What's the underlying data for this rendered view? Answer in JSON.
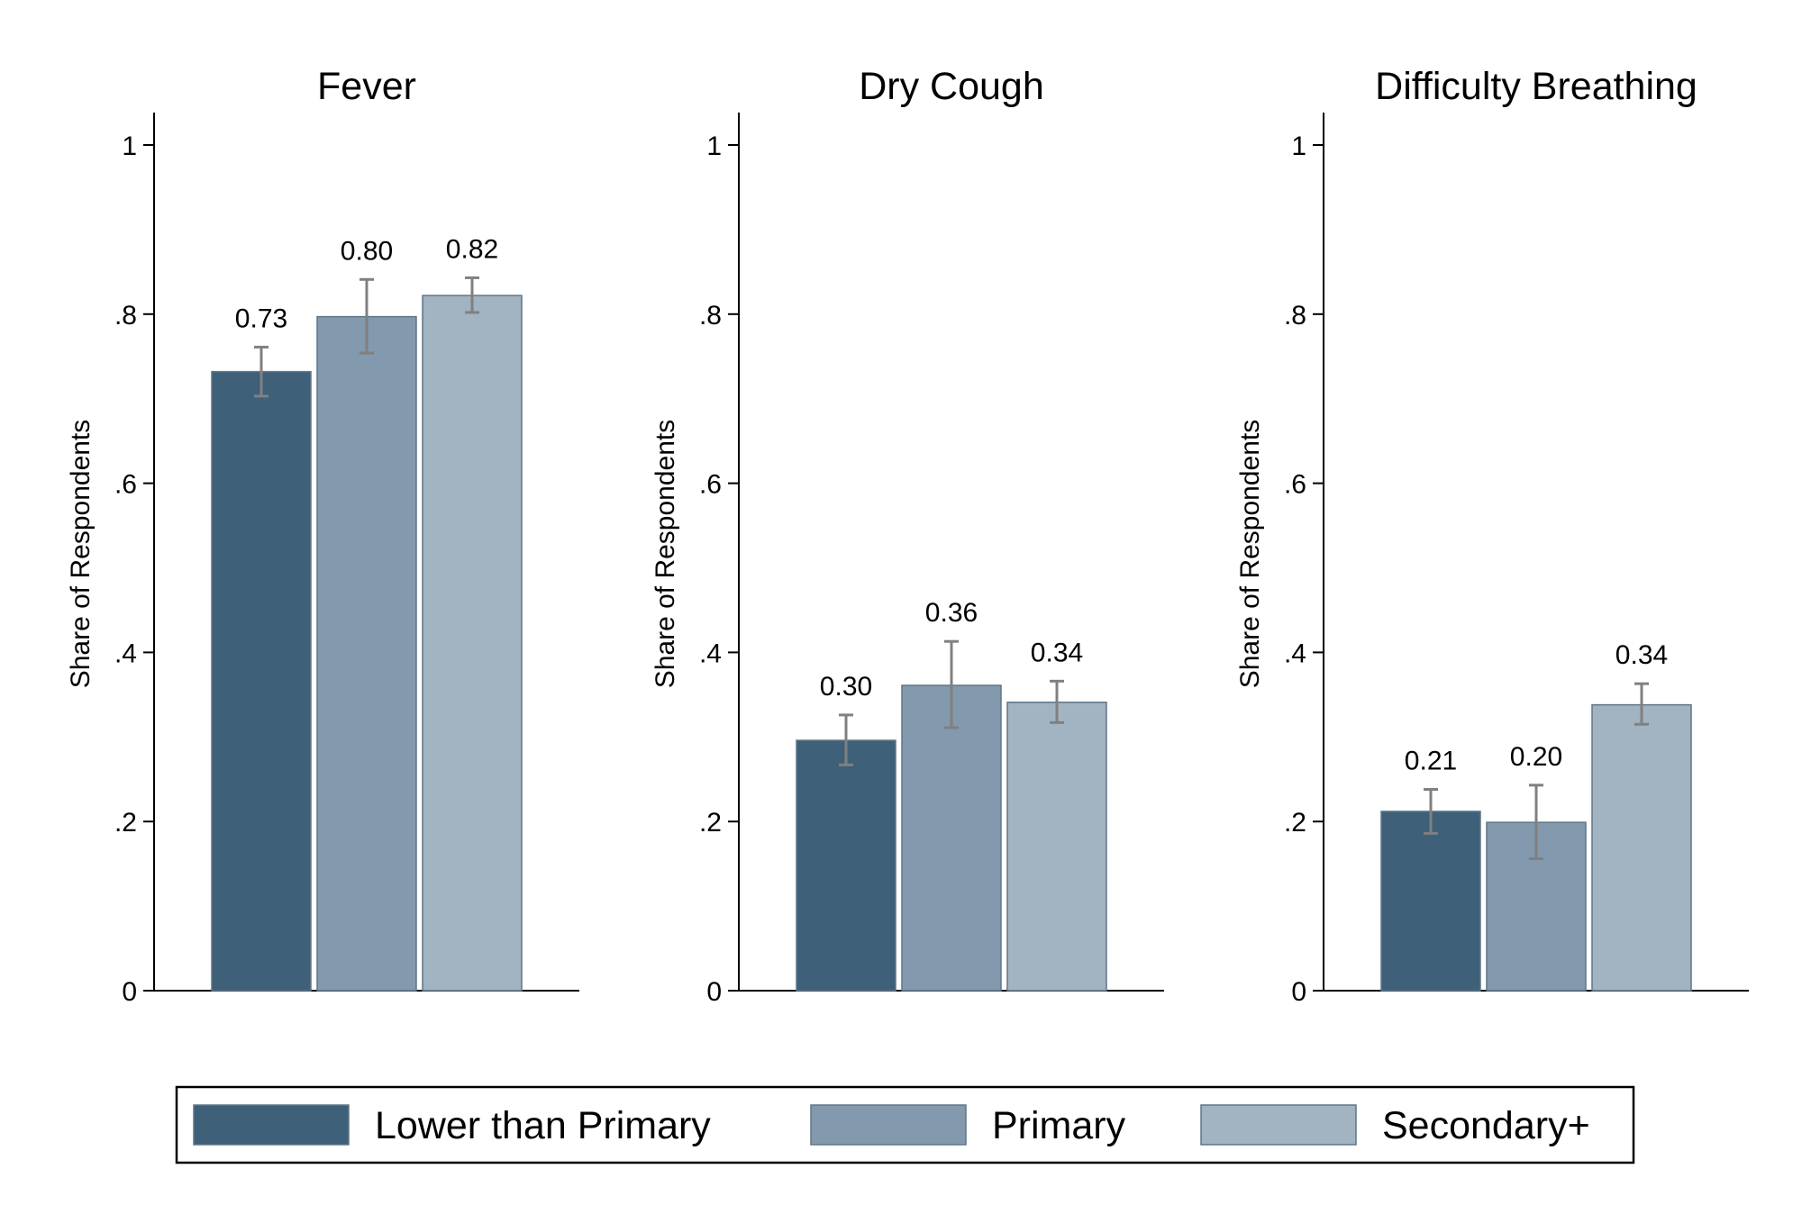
{
  "chart_data": {
    "type": "bar",
    "ylim": [
      0,
      1
    ],
    "yticks": [
      0,
      0.2,
      0.4,
      0.6,
      0.8,
      1
    ],
    "ytick_labels": [
      "0",
      ".2",
      ".4",
      ".6",
      ".8",
      "1"
    ],
    "grid": false,
    "legend_placement": "bottom",
    "series": [
      {
        "name": "Lower than Primary",
        "color": "#3e6079"
      },
      {
        "name": "Primary",
        "color": "#8299ae"
      },
      {
        "name": "Secondary+",
        "color": "#a2b3c1"
      }
    ],
    "error_bar_color": "#808080",
    "panels": [
      {
        "title": "Fever",
        "ylabel": "Share of Respondents",
        "values": [
          0.732,
          0.797,
          0.822
        ],
        "labels": [
          "0.73",
          "0.80",
          "0.82"
        ],
        "ci_low": [
          0.703,
          0.754,
          0.802
        ],
        "ci_high": [
          0.761,
          0.841,
          0.843
        ]
      },
      {
        "title": "Dry Cough",
        "ylabel": "Share of Respondents",
        "values": [
          0.296,
          0.361,
          0.341
        ],
        "labels": [
          "0.30",
          "0.36",
          "0.34"
        ],
        "ci_low": [
          0.267,
          0.311,
          0.317
        ],
        "ci_high": [
          0.326,
          0.413,
          0.366
        ]
      },
      {
        "title": "Difficulty Breathing",
        "ylabel": "Share of Respondents",
        "values": [
          0.212,
          0.199,
          0.338
        ],
        "labels": [
          "0.21",
          "0.20",
          "0.34"
        ],
        "ci_low": [
          0.186,
          0.156,
          0.315
        ],
        "ci_high": [
          0.238,
          0.243,
          0.363
        ]
      }
    ]
  }
}
